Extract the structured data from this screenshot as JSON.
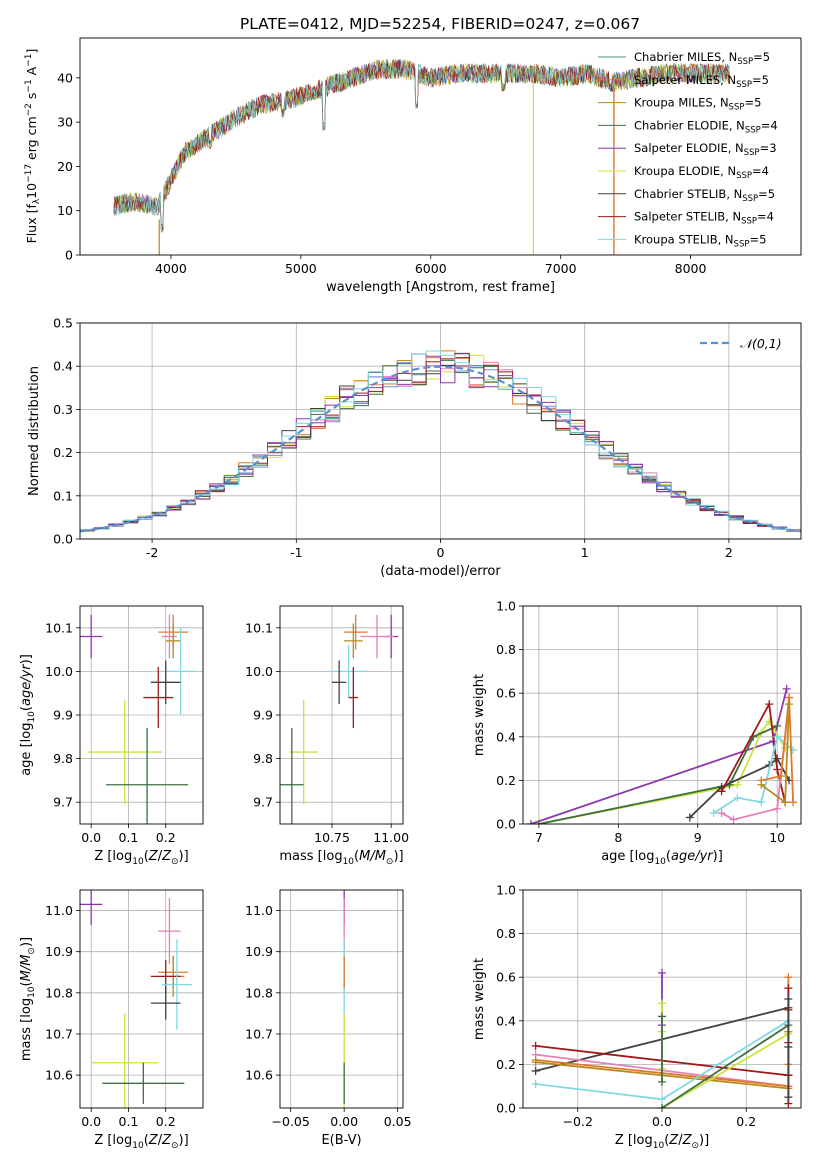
{
  "figure_title": "PLATE=0412, MJD=52254, FIBERID=0247, z=0.067",
  "colors": {
    "Chabrier MILES": "#4a9a7a",
    "Salpeter MILES": "#e07a2a",
    "Kroupa MILES": "#b88a1a",
    "Chabrier ELODIE": "#3f6f3f",
    "Salpeter ELODIE": "#8e35b0",
    "Kroupa ELODIE": "#c9e43a",
    "Chabrier STELIB": "#404040",
    "Salpeter STELIB": "#a01818",
    "Kroupa STELIB": "#80d8e0",
    "pink": "#e67fb8",
    "blue": "#6d8fd8",
    "normal": "#5a8fd0"
  },
  "chart_data": [
    {
      "id": "spectrum",
      "type": "line",
      "title": "PLATE=0412, MJD=52254, FIBERID=0247, z=0.067",
      "xlabel": "wavelength [Angstrom, rest frame]",
      "ylabel": "Flux [f_λ 10^-17 erg cm^-2 s^-1 A^-1]",
      "xlim": [
        3300,
        8850
      ],
      "ylim": [
        0,
        49
      ],
      "xticks": [
        4000,
        5000,
        6000,
        7000,
        8000
      ],
      "yticks": [
        0,
        10,
        20,
        30,
        40
      ],
      "legend_position": "top-right",
      "series": [
        {
          "name": "Chabrier MILES, N_SSP=5"
        },
        {
          "name": "Salpeter MILES, N_SSP=5"
        },
        {
          "name": "Kroupa MILES, N_SSP=5"
        },
        {
          "name": "Chabrier ELODIE, N_SSP=4"
        },
        {
          "name": "Salpeter ELODIE, N_SSP=3"
        },
        {
          "name": "Kroupa ELODIE, N_SSP=4"
        },
        {
          "name": "Chabrier STELIB, N_SSP=5"
        },
        {
          "name": "Salpeter STELIB, N_SSP=4"
        },
        {
          "name": "Kroupa STELIB, N_SSP=5"
        }
      ],
      "continuum": [
        [
          3560,
          11
        ],
        [
          3700,
          12
        ],
        [
          3900,
          11
        ],
        [
          4000,
          17
        ],
        [
          4100,
          23
        ],
        [
          4300,
          27
        ],
        [
          4500,
          31
        ],
        [
          4700,
          34
        ],
        [
          4900,
          35
        ],
        [
          5000,
          36
        ],
        [
          5200,
          38
        ],
        [
          5400,
          40
        ],
        [
          5600,
          42
        ],
        [
          5800,
          42
        ],
        [
          6000,
          40
        ],
        [
          6200,
          41
        ],
        [
          6400,
          41
        ],
        [
          6600,
          41
        ],
        [
          6800,
          41
        ],
        [
          7000,
          40
        ],
        [
          7200,
          41
        ],
        [
          7400,
          39
        ],
        [
          7600,
          40
        ],
        [
          7800,
          41
        ],
        [
          8000,
          41
        ],
        [
          8200,
          41
        ],
        [
          8300,
          41
        ]
      ],
      "dips": [
        [
          3930,
          5
        ],
        [
          4300,
          24
        ],
        [
          4860,
          31
        ],
        [
          5175,
          28
        ],
        [
          5890,
          33
        ],
        [
          6560,
          37
        ],
        [
          7380,
          37
        ]
      ],
      "legend_labels": [
        {
          "text": "Chabrier MILES, N",
          "sub": "SSP",
          "tail": "=5"
        },
        {
          "text": "Salpeter MILES, N",
          "sub": "SSP",
          "tail": "=5"
        },
        {
          "text": "Kroupa MILES, N",
          "sub": "SSP",
          "tail": "=5"
        },
        {
          "text": "Chabrier ELODIE, N",
          "sub": "SSP",
          "tail": "=4"
        },
        {
          "text": "Salpeter ELODIE, N",
          "sub": "SSP",
          "tail": "=3"
        },
        {
          "text": "Kroupa ELODIE, N",
          "sub": "SSP",
          "tail": "=4"
        },
        {
          "text": "Chabrier STELIB, N",
          "sub": "SSP",
          "tail": "=5"
        },
        {
          "text": "Salpeter STELIB, N",
          "sub": "SSP",
          "tail": "=4"
        },
        {
          "text": "Kroupa STELIB, N",
          "sub": "SSP",
          "tail": "=5"
        }
      ]
    },
    {
      "id": "residuals",
      "type": "histogram",
      "xlabel": "(data-model)/error",
      "ylabel": "Normed distribution",
      "xlim": [
        -2.5,
        2.5
      ],
      "ylim": [
        0,
        0.5
      ],
      "xticks": [
        -2,
        -1,
        0,
        1,
        2
      ],
      "yticks": [
        0.0,
        0.1,
        0.2,
        0.3,
        0.4,
        0.5
      ],
      "bin_width": 0.1,
      "grid": true,
      "legend_position": "top-right",
      "legend_label": "𝒩(0,1)",
      "curve": "standard normal, dashed"
    },
    {
      "id": "age_vs_Z",
      "type": "scatter",
      "xlabel": "Z [log10(Z/Z☉)]",
      "ylabel": "age [log10(age/yr)]",
      "xlim": [
        -0.03,
        0.3
      ],
      "ylim": [
        9.65,
        10.15
      ],
      "xticks": [
        0.0,
        0.1,
        0.2
      ],
      "yticks": [
        9.7,
        9.8,
        9.9,
        10.0,
        10.1
      ],
      "grid": true,
      "points": [
        {
          "c": "Salpeter ELODIE",
          "x": 0.0,
          "xe": 0.03,
          "y": 10.08,
          "ye": 0.05
        },
        {
          "c": "Salpeter MILES",
          "x": 0.22,
          "xe": 0.04,
          "y": 10.09,
          "ye": 0.04
        },
        {
          "c": "pink",
          "x": 0.21,
          "xe": 0.02,
          "y": 10.08,
          "ye": 0.05
        },
        {
          "c": "Kroupa MILES",
          "x": 0.22,
          "xe": 0.02,
          "y": 10.07,
          "ye": 0.04
        },
        {
          "c": "Kroupa STELIB",
          "x": 0.24,
          "xe": 0.04,
          "y": 10.0,
          "ye": 0.1
        },
        {
          "c": "Chabrier STELIB",
          "x": 0.2,
          "xe": 0.04,
          "y": 9.975,
          "ye": 0.05
        },
        {
          "c": "Salpeter STELIB",
          "x": 0.18,
          "xe": 0.04,
          "y": 9.94,
          "ye": 0.07
        },
        {
          "c": "Kroupa ELODIE",
          "x": 0.09,
          "xe": 0.1,
          "y": 9.815,
          "ye": 0.12
        },
        {
          "c": "Chabrier ELODIE",
          "x": 0.15,
          "xe": 0.11,
          "y": 9.74,
          "ye": 0.13
        }
      ]
    },
    {
      "id": "age_vs_mass",
      "type": "scatter",
      "xlabel": "mass [log10(M/M☉)]",
      "xlim": [
        10.53,
        11.05
      ],
      "ylim": [
        9.65,
        10.15
      ],
      "xticks": [
        10.75,
        11.0
      ],
      "yticks": [
        9.7,
        9.8,
        9.9,
        10.0,
        10.1
      ],
      "grid": true,
      "points": [
        {
          "c": "Salpeter ELODIE",
          "x": 11.0,
          "xe": 0.03,
          "y": 10.08,
          "ye": 0.05
        },
        {
          "c": "pink",
          "x": 10.94,
          "xe": 0.07,
          "y": 10.08,
          "ye": 0.05
        },
        {
          "c": "Salpeter MILES",
          "x": 10.85,
          "xe": 0.05,
          "y": 10.09,
          "ye": 0.04
        },
        {
          "c": "Kroupa MILES",
          "x": 10.84,
          "xe": 0.04,
          "y": 10.07,
          "ye": 0.04
        },
        {
          "c": "Kroupa STELIB",
          "x": 10.82,
          "xe": 0.08,
          "y": 10.0,
          "ye": 0.06
        },
        {
          "c": "Chabrier STELIB",
          "x": 10.78,
          "xe": 0.03,
          "y": 9.975,
          "ye": 0.05
        },
        {
          "c": "Salpeter STELIB",
          "x": 10.84,
          "xe": 0.02,
          "y": 9.94,
          "ye": 0.07
        },
        {
          "c": "Kroupa ELODIE",
          "x": 10.63,
          "xe": 0.06,
          "y": 9.815,
          "ye": 0.12
        },
        {
          "c": "Chabrier ELODIE",
          "x": 10.58,
          "xe": 0.05,
          "y": 9.74,
          "ye": 0.13
        }
      ]
    },
    {
      "id": "mass_weight_vs_age",
      "type": "line",
      "xlabel": "age [log10(age/yr)]",
      "ylabel": "mass weight",
      "xlim": [
        6.8,
        10.3
      ],
      "ylim": [
        0,
        1
      ],
      "xticks": [
        7,
        8,
        9,
        10
      ],
      "yticks": [
        0.0,
        0.2,
        0.4,
        0.6,
        0.8,
        1.0
      ],
      "grid": true,
      "series": [
        {
          "c": "Salpeter ELODIE",
          "x": [
            6.9,
            9.95,
            10.12
          ],
          "y": [
            0.0,
            0.38,
            0.62
          ]
        },
        {
          "c": "Kroupa ELODIE",
          "x": [
            7.0,
            9.5,
            9.8,
            9.9,
            10.1
          ],
          "y": [
            0.0,
            0.18,
            0.42,
            0.47,
            0.35
          ]
        },
        {
          "c": "Chabrier ELODIE",
          "x": [
            7.0,
            9.4,
            9.7,
            10.0
          ],
          "y": [
            0.0,
            0.18,
            0.4,
            0.45
          ]
        },
        {
          "c": "Chabrier STELIB",
          "x": [
            8.9,
            9.3,
            9.9,
            10.0,
            10.15
          ],
          "y": [
            0.03,
            0.17,
            0.27,
            0.3,
            0.2
          ]
        },
        {
          "c": "Salpeter STELIB",
          "x": [
            9.3,
            9.9,
            10.0,
            10.1
          ],
          "y": [
            0.15,
            0.55,
            0.25,
            0.1
          ]
        },
        {
          "c": "Kroupa STELIB",
          "x": [
            9.2,
            9.5,
            9.8,
            10.0,
            10.2
          ],
          "y": [
            0.05,
            0.12,
            0.1,
            0.4,
            0.34
          ]
        },
        {
          "c": "pink",
          "x": [
            9.3,
            9.45,
            10.0,
            10.15
          ],
          "y": [
            0.05,
            0.02,
            0.07,
            0.58
          ]
        },
        {
          "c": "Salpeter MILES",
          "x": [
            9.8,
            10.05,
            10.15,
            10.2
          ],
          "y": [
            0.2,
            0.22,
            0.58,
            0.1
          ]
        },
        {
          "c": "Kroupa MILES",
          "x": [
            9.8,
            10.1,
            10.15
          ],
          "y": [
            0.18,
            0.1,
            0.55
          ]
        }
      ]
    },
    {
      "id": "mass_vs_Z",
      "type": "scatter",
      "xlabel": "Z [log10(Z/Z☉)]",
      "ylabel": "mass [log10(M/M☉)]",
      "xlim": [
        -0.03,
        0.3
      ],
      "ylim": [
        10.52,
        11.05
      ],
      "xticks": [
        0.0,
        0.1,
        0.2
      ],
      "yticks": [
        10.6,
        10.7,
        10.8,
        10.9,
        11.0
      ],
      "grid": true,
      "points": [
        {
          "c": "Salpeter ELODIE",
          "x": 0.0,
          "xe": 0.03,
          "y": 11.015,
          "ye": 0.05
        },
        {
          "c": "pink",
          "x": 0.21,
          "xe": 0.03,
          "y": 10.95,
          "ye": 0.08
        },
        {
          "c": "Salpeter MILES",
          "x": 0.22,
          "xe": 0.04,
          "y": 10.85,
          "ye": 0.04
        },
        {
          "c": "Kroupa MILES",
          "x": 0.22,
          "xe": 0.03,
          "y": 10.84,
          "ye": 0.05
        },
        {
          "c": "Salpeter STELIB",
          "x": 0.2,
          "xe": 0.04,
          "y": 10.84,
          "ye": 0.04
        },
        {
          "c": "Kroupa STELIB",
          "x": 0.23,
          "xe": 0.04,
          "y": 10.82,
          "ye": 0.11
        },
        {
          "c": "Chabrier STELIB",
          "x": 0.2,
          "xe": 0.04,
          "y": 10.775,
          "ye": 0.04
        },
        {
          "c": "Kroupa ELODIE",
          "x": 0.09,
          "xe": 0.09,
          "y": 10.63,
          "ye": 0.12
        },
        {
          "c": "Chabrier ELODIE",
          "x": 0.14,
          "xe": 0.11,
          "y": 10.58,
          "ye": 0.05
        }
      ]
    },
    {
      "id": "mass_vs_EBV",
      "type": "scatter",
      "xlabel": "E(B-V)",
      "xlim": [
        -0.06,
        0.055
      ],
      "ylim": [
        10.52,
        11.05
      ],
      "xticks": [
        -0.05,
        0.0,
        0.05
      ],
      "xticklabels": [
        "−0.05",
        "0.00",
        "0.05"
      ],
      "yticks": [
        10.6,
        10.7,
        10.8,
        10.9,
        11.0
      ],
      "grid": true,
      "points": [
        {
          "c": "Salpeter ELODIE",
          "x": 0.0,
          "xe": 0.0,
          "y": 11.015,
          "ye": 0.05
        },
        {
          "c": "pink",
          "x": 0.0,
          "xe": 0.0,
          "y": 10.95,
          "ye": 0.08
        },
        {
          "c": "Kroupa STELIB",
          "x": 0.0,
          "xe": 0.0,
          "y": 10.82,
          "ye": 0.11
        },
        {
          "c": "Salpeter MILES",
          "x": 0.0,
          "xe": 0.0,
          "y": 10.85,
          "ye": 0.04
        },
        {
          "c": "Kroupa ELODIE",
          "x": 0.0,
          "xe": 0.0,
          "y": 10.63,
          "ye": 0.12
        },
        {
          "c": "Chabrier ELODIE",
          "x": 0.0,
          "xe": 0.0,
          "y": 10.58,
          "ye": 0.05
        }
      ]
    },
    {
      "id": "mass_weight_vs_Z",
      "type": "line",
      "xlabel": "Z [log10(Z/Z☉)]",
      "ylabel": "mass weight",
      "xlim": [
        -0.33,
        0.33
      ],
      "ylim": [
        0,
        1
      ],
      "xticks": [
        -0.2,
        0.0,
        0.2
      ],
      "xticklabels": [
        "−0.2",
        "0.0",
        "0.2"
      ],
      "yticks": [
        0.0,
        0.2,
        0.4,
        0.6,
        0.8,
        1.0
      ],
      "grid": true,
      "series": [
        {
          "c": "Chabrier STELIB",
          "x": [
            -0.3,
            0.3
          ],
          "y": [
            0.17,
            0.46
          ]
        },
        {
          "c": "Salpeter STELIB",
          "x": [
            -0.3,
            0.3
          ],
          "y": [
            0.285,
            0.15
          ]
        },
        {
          "c": "pink",
          "x": [
            -0.3,
            0.3
          ],
          "y": [
            0.245,
            0.1
          ]
        },
        {
          "c": "Salpeter MILES",
          "x": [
            -0.3,
            0.3
          ],
          "y": [
            0.22,
            0.1
          ]
        },
        {
          "c": "Kroupa MILES",
          "x": [
            -0.3,
            0.3
          ],
          "y": [
            0.21,
            0.09
          ]
        },
        {
          "c": "Kroupa STELIB",
          "x": [
            -0.3,
            0.0,
            0.3
          ],
          "y": [
            0.11,
            0.04,
            0.4
          ]
        },
        {
          "c": "Kroupa ELODIE",
          "x": [
            0.0,
            0.3
          ],
          "y": [
            0.0,
            0.34
          ]
        },
        {
          "c": "Chabrier ELODIE",
          "x": [
            0.0,
            0.3
          ],
          "y": [
            0.0,
            0.38
          ]
        },
        {
          "c": "Salpeter ELODIE",
          "x": [
            0.0,
            0.0
          ],
          "y": [
            0.38,
            0.62
          ]
        }
      ],
      "stacks": [
        {
          "c": "Salpeter MILES",
          "x": 0.3,
          "ys": [
            0.6,
            0.55,
            0.45,
            0.35,
            0.2,
            0.05
          ]
        },
        {
          "c": "Salpeter STELIB",
          "x": 0.3,
          "ys": [
            0.55,
            0.45,
            0.3,
            0.15,
            0.02
          ]
        },
        {
          "c": "Chabrier STELIB",
          "x": 0.3,
          "ys": [
            0.5,
            0.28,
            0.05
          ]
        },
        {
          "c": "Kroupa ELODIE",
          "x": 0.0,
          "ys": [
            0.48,
            0.35,
            0.18
          ]
        },
        {
          "c": "Chabrier ELODIE",
          "x": 0.0,
          "ys": [
            0.42,
            0.12
          ]
        }
      ]
    }
  ]
}
